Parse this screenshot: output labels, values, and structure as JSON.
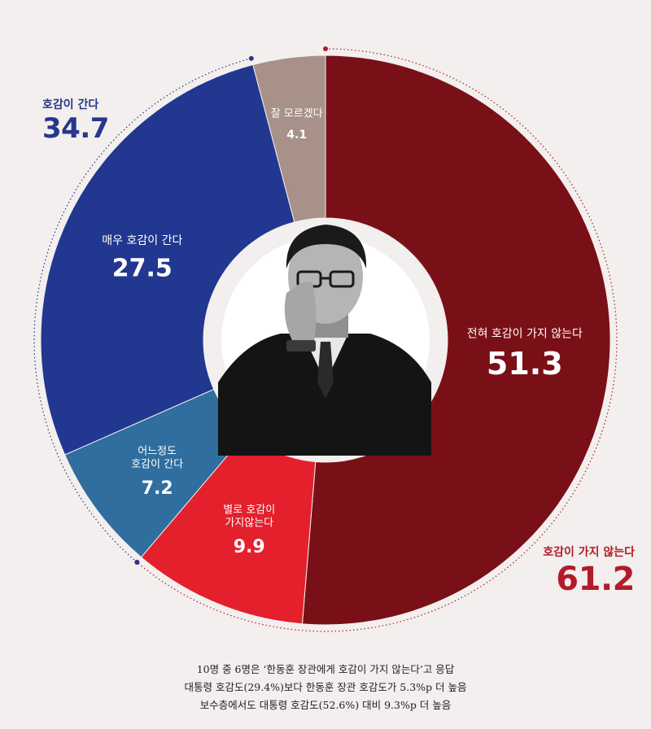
{
  "chart_data": {
    "type": "pie",
    "slices": [
      {
        "label": "전혀 호감이 가지 않는다",
        "value": 51.3,
        "color": "#7a1017"
      },
      {
        "label": "별로 호감이 가지않는다",
        "label_lines": [
          "별로 호감이",
          "가지않는다"
        ],
        "value": 9.9,
        "color": "#e3202c"
      },
      {
        "label": "어느정도 호감이 간다",
        "label_lines": [
          "어느정도",
          "호감이 간다"
        ],
        "value": 7.2,
        "color": "#2f6e9e"
      },
      {
        "label": "매우 호감이 간다",
        "value": 27.5,
        "color": "#22378f"
      },
      {
        "label": "잘 모르겠다",
        "value": 4.1,
        "color": "#a89189"
      }
    ],
    "groups": {
      "favorable": {
        "label": "호감이 간다",
        "value": 34.7,
        "color": "#27378a"
      },
      "unfavorable": {
        "label": "호감이 가지 않는다",
        "value": 61.2,
        "color": "#b31b2a"
      }
    }
  },
  "caption": [
    "10명 중 6명은 ‘한동훈 장관에게 호감이 가지 않는다’고 응답",
    "대통령 호감도(29.4%)보다 한동훈 장관 호감도가 5.3%p 더 높음",
    "보수층에서도 대통령 호감도(52.6%) 대비 9.3%p 더 높음"
  ],
  "center_photo": {
    "icon": "person-portrait-icon"
  }
}
